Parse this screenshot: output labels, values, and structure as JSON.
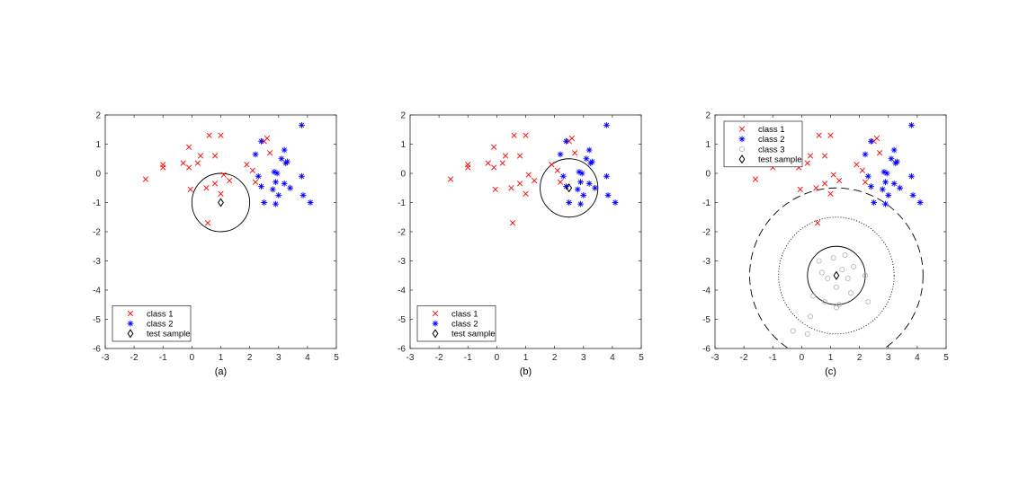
{
  "chart_data": [
    {
      "panel_label": "(a)",
      "type": "scatter",
      "xlim": [
        -3,
        5
      ],
      "ylim": [
        -6,
        2
      ],
      "xticks": [
        -3,
        -2,
        -1,
        0,
        1,
        2,
        3,
        4,
        5
      ],
      "yticks": [
        -6,
        -5,
        -4,
        -3,
        -2,
        -1,
        0,
        1,
        2
      ],
      "legend_position": "bottom-left",
      "colors": {
        "class1": "#ff0000",
        "class2": "#0000ff",
        "test": "#000000",
        "circle": "#000000"
      },
      "series": [
        {
          "name": "class 1",
          "marker": "x",
          "points": [
            [
              -1.6,
              -0.2
            ],
            [
              -1.0,
              0.2
            ],
            [
              -1.0,
              0.3
            ],
            [
              -0.3,
              0.35
            ],
            [
              -0.1,
              0.9
            ],
            [
              -0.1,
              0.2
            ],
            [
              -0.05,
              -0.55
            ],
            [
              0.2,
              0.35
            ],
            [
              0.3,
              0.6
            ],
            [
              0.5,
              -0.5
            ],
            [
              0.55,
              -1.7
            ],
            [
              0.6,
              1.3
            ],
            [
              0.8,
              0.6
            ],
            [
              0.8,
              -0.35
            ],
            [
              1.0,
              1.3
            ],
            [
              1.0,
              -0.7
            ],
            [
              1.1,
              -0.05
            ],
            [
              1.3,
              -0.25
            ],
            [
              1.9,
              0.3
            ],
            [
              2.1,
              0.1
            ],
            [
              2.2,
              -0.3
            ],
            [
              2.5,
              1.1
            ],
            [
              2.6,
              1.2
            ],
            [
              2.7,
              0.7
            ]
          ]
        },
        {
          "name": "class 2",
          "marker": "asterisk",
          "points": [
            [
              2.2,
              0.65
            ],
            [
              2.3,
              -0.1
            ],
            [
              2.4,
              -0.45
            ],
            [
              2.4,
              1.1
            ],
            [
              2.5,
              -1.0
            ],
            [
              2.8,
              -0.55
            ],
            [
              2.85,
              0.05
            ],
            [
              2.9,
              -0.3
            ],
            [
              2.9,
              -1.05
            ],
            [
              2.95,
              0.0
            ],
            [
              3.0,
              -0.75
            ],
            [
              3.1,
              0.5
            ],
            [
              3.2,
              0.8
            ],
            [
              3.2,
              -0.35
            ],
            [
              3.25,
              0.35
            ],
            [
              3.3,
              0.4
            ],
            [
              3.4,
              -0.5
            ],
            [
              3.8,
              1.65
            ],
            [
              3.8,
              -0.1
            ],
            [
              3.85,
              -0.75
            ],
            [
              4.1,
              -1.0
            ]
          ]
        },
        {
          "name": "test sample",
          "marker": "diamond",
          "points": [
            [
              1.0,
              -1.0
            ]
          ]
        }
      ],
      "circles": [
        {
          "center": [
            1.0,
            -1.0
          ],
          "radius": 1.0,
          "style": "solid"
        }
      ]
    },
    {
      "panel_label": "(b)",
      "type": "scatter",
      "xlim": [
        -3,
        5
      ],
      "ylim": [
        -6,
        2
      ],
      "xticks": [
        -3,
        -2,
        -1,
        0,
        1,
        2,
        3,
        4,
        5
      ],
      "yticks": [
        -6,
        -5,
        -4,
        -3,
        -2,
        -1,
        0,
        1,
        2
      ],
      "legend_position": "bottom-left",
      "colors": {
        "class1": "#ff0000",
        "class2": "#0000ff",
        "test": "#000000",
        "circle": "#000000"
      },
      "series": [
        {
          "name": "class 1",
          "marker": "x",
          "points": [
            [
              -1.6,
              -0.2
            ],
            [
              -1.0,
              0.2
            ],
            [
              -1.0,
              0.3
            ],
            [
              -0.3,
              0.35
            ],
            [
              -0.1,
              0.9
            ],
            [
              -0.1,
              0.2
            ],
            [
              -0.05,
              -0.55
            ],
            [
              0.2,
              0.35
            ],
            [
              0.3,
              0.6
            ],
            [
              0.5,
              -0.5
            ],
            [
              0.55,
              -1.7
            ],
            [
              0.6,
              1.3
            ],
            [
              0.8,
              0.6
            ],
            [
              0.8,
              -0.35
            ],
            [
              1.0,
              1.3
            ],
            [
              1.0,
              -0.7
            ],
            [
              1.1,
              -0.05
            ],
            [
              1.3,
              -0.25
            ],
            [
              1.9,
              0.3
            ],
            [
              2.1,
              0.1
            ],
            [
              2.2,
              -0.3
            ],
            [
              2.5,
              1.1
            ],
            [
              2.6,
              1.2
            ],
            [
              2.7,
              0.7
            ]
          ]
        },
        {
          "name": "class 2",
          "marker": "asterisk",
          "points": [
            [
              2.2,
              0.65
            ],
            [
              2.3,
              -0.1
            ],
            [
              2.4,
              -0.45
            ],
            [
              2.4,
              1.1
            ],
            [
              2.5,
              -1.0
            ],
            [
              2.8,
              -0.55
            ],
            [
              2.85,
              0.05
            ],
            [
              2.9,
              -0.3
            ],
            [
              2.9,
              -1.05
            ],
            [
              2.95,
              0.0
            ],
            [
              3.0,
              -0.75
            ],
            [
              3.1,
              0.5
            ],
            [
              3.2,
              0.8
            ],
            [
              3.2,
              -0.35
            ],
            [
              3.25,
              0.35
            ],
            [
              3.3,
              0.4
            ],
            [
              3.4,
              -0.5
            ],
            [
              3.8,
              1.65
            ],
            [
              3.8,
              -0.1
            ],
            [
              3.85,
              -0.75
            ],
            [
              4.1,
              -1.0
            ]
          ]
        },
        {
          "name": "test sample",
          "marker": "diamond",
          "points": [
            [
              2.5,
              -0.5
            ]
          ]
        }
      ],
      "circles": [
        {
          "center": [
            2.5,
            -0.5
          ],
          "radius": 1.0,
          "style": "solid"
        }
      ]
    },
    {
      "panel_label": "(c)",
      "type": "scatter",
      "xlim": [
        -3,
        5
      ],
      "ylim": [
        -6,
        2
      ],
      "xticks": [
        -3,
        -2,
        -1,
        0,
        1,
        2,
        3,
        4,
        5
      ],
      "yticks": [
        -6,
        -5,
        -4,
        -3,
        -2,
        -1,
        0,
        1,
        2
      ],
      "legend_position": "top-left",
      "colors": {
        "class1": "#ff0000",
        "class2": "#0000ff",
        "class3": "#b3b3b3",
        "test": "#000000",
        "circle": "#000000"
      },
      "series": [
        {
          "name": "class 1",
          "marker": "x",
          "points": [
            [
              -1.6,
              -0.2
            ],
            [
              -1.0,
              0.2
            ],
            [
              -1.0,
              0.3
            ],
            [
              -0.3,
              0.35
            ],
            [
              -0.1,
              0.9
            ],
            [
              -0.1,
              0.2
            ],
            [
              -0.05,
              -0.55
            ],
            [
              0.2,
              0.35
            ],
            [
              0.3,
              0.6
            ],
            [
              0.5,
              -0.5
            ],
            [
              0.55,
              -1.7
            ],
            [
              0.6,
              1.3
            ],
            [
              0.8,
              0.6
            ],
            [
              0.8,
              -0.35
            ],
            [
              1.0,
              1.3
            ],
            [
              1.0,
              -0.7
            ],
            [
              1.1,
              -0.05
            ],
            [
              1.3,
              -0.25
            ],
            [
              1.9,
              0.3
            ],
            [
              2.1,
              0.1
            ],
            [
              2.2,
              -0.3
            ],
            [
              2.5,
              1.1
            ],
            [
              2.6,
              1.2
            ],
            [
              2.7,
              0.7
            ]
          ]
        },
        {
          "name": "class 2",
          "marker": "asterisk",
          "points": [
            [
              2.2,
              0.65
            ],
            [
              2.3,
              -0.1
            ],
            [
              2.4,
              -0.45
            ],
            [
              2.4,
              1.1
            ],
            [
              2.5,
              -1.0
            ],
            [
              2.8,
              -0.55
            ],
            [
              2.85,
              0.05
            ],
            [
              2.9,
              -0.3
            ],
            [
              2.9,
              -1.05
            ],
            [
              2.95,
              0.0
            ],
            [
              3.0,
              -0.75
            ],
            [
              3.1,
              0.5
            ],
            [
              3.2,
              0.8
            ],
            [
              3.2,
              -0.35
            ],
            [
              3.25,
              0.35
            ],
            [
              3.3,
              0.4
            ],
            [
              3.4,
              -0.5
            ],
            [
              3.8,
              1.65
            ],
            [
              3.8,
              -0.1
            ],
            [
              3.85,
              -0.75
            ],
            [
              4.1,
              -1.0
            ]
          ]
        },
        {
          "name": "class 3",
          "marker": "circle",
          "points": [
            [
              -0.3,
              -5.4
            ],
            [
              0.2,
              -5.5
            ],
            [
              0.3,
              -4.9
            ],
            [
              0.4,
              -4.2
            ],
            [
              0.6,
              -3.0
            ],
            [
              0.7,
              -3.4
            ],
            [
              0.8,
              -4.4
            ],
            [
              0.9,
              -3.6
            ],
            [
              1.1,
              -2.9
            ],
            [
              1.2,
              -3.9
            ],
            [
              1.2,
              -4.6
            ],
            [
              1.3,
              -4.5
            ],
            [
              1.4,
              -3.3
            ],
            [
              1.5,
              -2.8
            ],
            [
              1.6,
              -3.6
            ],
            [
              1.7,
              -4.1
            ],
            [
              1.8,
              -3.2
            ],
            [
              2.2,
              -3.5
            ],
            [
              2.3,
              -4.4
            ]
          ]
        },
        {
          "name": "test sample",
          "marker": "diamond",
          "points": [
            [
              1.2,
              -3.5
            ]
          ]
        }
      ],
      "circles": [
        {
          "center": [
            1.2,
            -3.5
          ],
          "radius": 1.0,
          "style": "solid"
        },
        {
          "center": [
            1.2,
            -3.5
          ],
          "radius": 2.0,
          "style": "dotted"
        },
        {
          "center": [
            1.2,
            -3.5
          ],
          "radius": 3.0,
          "style": "dashed"
        }
      ]
    }
  ]
}
